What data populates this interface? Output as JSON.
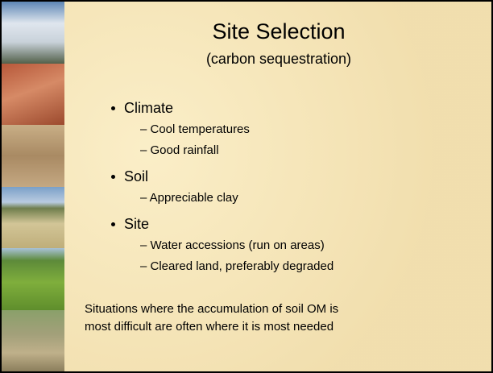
{
  "title": "Site Selection",
  "subtitle": "(carbon sequestration)",
  "bullets": [
    {
      "text": "Climate",
      "subitems": [
        "– Cool temperatures",
        "– Good rainfall"
      ]
    },
    {
      "text": "Soil",
      "subitems": [
        "– Appreciable clay"
      ]
    },
    {
      "text": "Site",
      "subitems": [
        "– Water accessions (run on areas)",
        "– Cleared land, preferably degraded"
      ]
    }
  ],
  "note": [
    "Situations where the accumulation of soil OM is",
    "most difficult are often where it is most needed"
  ]
}
